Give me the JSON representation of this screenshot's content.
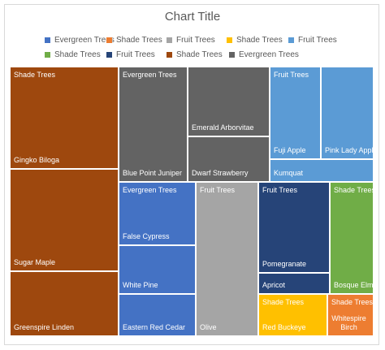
{
  "chart_data": {
    "type": "treemap",
    "title": "Chart Title",
    "legend": [
      {
        "label": "Evergreen Trees",
        "color": "#4472C4"
      },
      {
        "label": "Shade Trees",
        "color": "#ED7D31"
      },
      {
        "label": "Fruit Trees",
        "color": "#A5A5A5"
      },
      {
        "label": "Shade Trees",
        "color": "#FFC000"
      },
      {
        "label": "Fruit Trees",
        "color": "#5B9BD5"
      },
      {
        "label": "Shade Trees",
        "color": "#70AD47"
      },
      {
        "label": "Fruit Trees",
        "color": "#264478"
      },
      {
        "label": "Shade Trees",
        "color": "#9E480E"
      },
      {
        "label": "Evergreen Trees",
        "color": "#636363"
      }
    ],
    "legend_placement": "top",
    "tiles": [
      {
        "name": "Gingko Biloga",
        "group": "Shade Trees",
        "show_group": true,
        "color": "#9E480E"
      },
      {
        "name": "Sugar Maple",
        "group": "Shade Trees",
        "show_group": false,
        "color": "#9E480E"
      },
      {
        "name": "Greenspire Linden",
        "group": "Shade Trees",
        "show_group": false,
        "color": "#9E480E"
      },
      {
        "name": "Blue Point Juniper",
        "group": "Evergreen Trees",
        "show_group": true,
        "color": "#636363"
      },
      {
        "name": "Emerald Arborvitae",
        "group": "Evergreen Trees",
        "show_group": false,
        "color": "#636363"
      },
      {
        "name": "Dwarf Strawberry",
        "group": "Evergreen Trees",
        "show_group": false,
        "color": "#636363"
      },
      {
        "name": "Fuji Apple",
        "group": "Fruit Trees",
        "show_group": true,
        "color": "#5B9BD5"
      },
      {
        "name": "Pink Lady Apple",
        "group": "Fruit Trees",
        "show_group": false,
        "color": "#5B9BD5"
      },
      {
        "name": "Kumquat",
        "group": "Fruit Trees",
        "show_group": false,
        "color": "#5B9BD5"
      },
      {
        "name": "False Cypress",
        "group": "Evergreen Trees",
        "show_group": true,
        "color": "#4472C4"
      },
      {
        "name": "White Pine",
        "group": "Evergreen Trees",
        "show_group": false,
        "color": "#4472C4"
      },
      {
        "name": "Eastern Red Cedar",
        "group": "Evergreen Trees",
        "show_group": false,
        "color": "#4472C4"
      },
      {
        "name": "Olive",
        "group": "Fruit Trees",
        "show_group": true,
        "color": "#A5A5A5"
      },
      {
        "name": "Pomegranate",
        "group": "Fruit Trees",
        "show_group": true,
        "color": "#264478"
      },
      {
        "name": "Apricot",
        "group": "Fruit Trees",
        "show_group": false,
        "color": "#264478"
      },
      {
        "name": "Bosque Elm",
        "group": "Shade Trees",
        "show_group": true,
        "color": "#70AD47"
      },
      {
        "name": "Red Buckeye",
        "group": "Shade Trees",
        "show_group": true,
        "color": "#FFC000"
      },
      {
        "name": "Whitespire Birch",
        "group": "Shade Trees",
        "show_group": true,
        "color": "#ED7D31"
      }
    ]
  }
}
